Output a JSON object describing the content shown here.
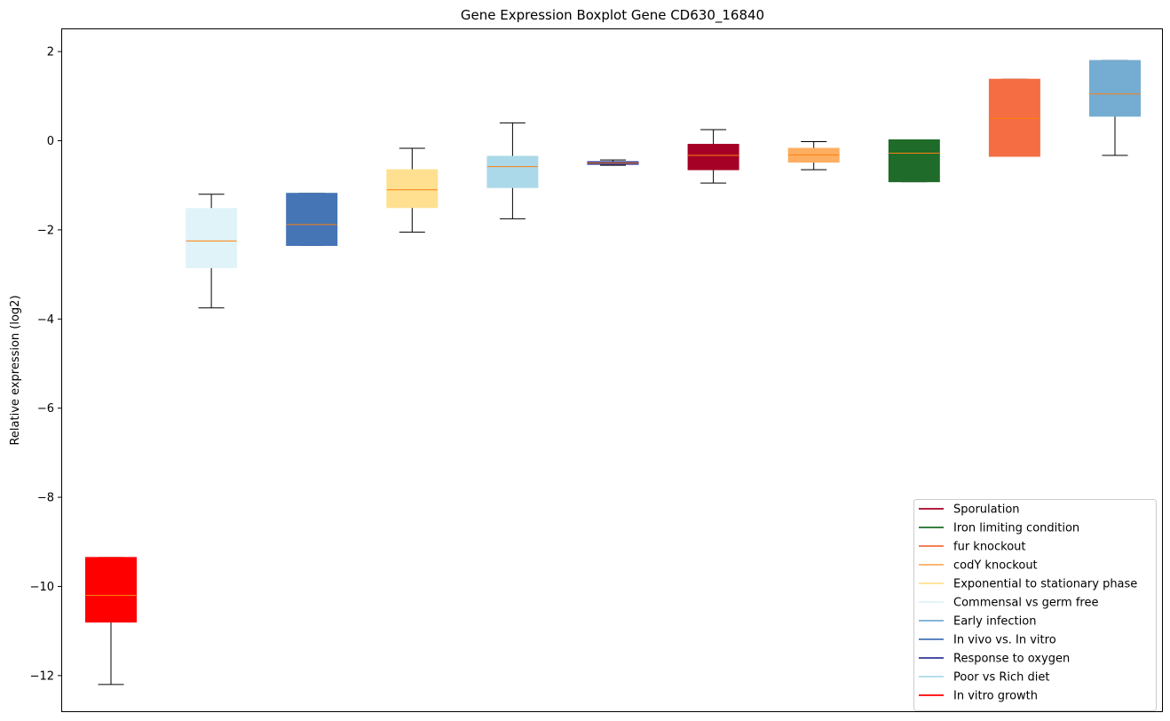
{
  "chart_data": {
    "type": "boxplot",
    "title": "Gene Expression Boxplot Gene CD630_16840",
    "ylabel": "Relative expression (log2)",
    "xlabel": "",
    "ylim": [
      -12.8,
      2.5
    ],
    "yticks": [
      2,
      0,
      -2,
      -4,
      -6,
      -8,
      -10,
      -12
    ],
    "ytick_labels": [
      "2",
      "0",
      "−2",
      "−4",
      "−6",
      "−8",
      "−10",
      "−12"
    ],
    "legend_position": "lower-right",
    "median_color": "#ff7f0e",
    "whisker_color": "#000000",
    "boxes": [
      {
        "name": "In vitro growth",
        "color": "#ff0000",
        "whislo": -12.2,
        "q1": -10.8,
        "med": -10.2,
        "q3": -9.35,
        "whishi": -9.35
      },
      {
        "name": "Commensal vs germ free",
        "color": "#e0f3f8",
        "whislo": -3.75,
        "q1": -2.85,
        "med": -2.25,
        "q3": -1.52,
        "whishi": -1.2
      },
      {
        "name": "In vivo vs. In vitro",
        "color": "#4575b4",
        "whislo": -2.35,
        "q1": -2.35,
        "med": -1.88,
        "q3": -1.18,
        "whishi": -1.18
      },
      {
        "name": "Exponential to stationary phase",
        "color": "#fee090",
        "whislo": -2.05,
        "q1": -1.5,
        "med": -1.1,
        "q3": -0.65,
        "whishi": -0.17
      },
      {
        "name": "Poor vs Rich diet",
        "color": "#abd9e9",
        "whislo": -1.75,
        "q1": -1.05,
        "med": -0.58,
        "q3": -0.35,
        "whishi": 0.4
      },
      {
        "name": "Response to oxygen",
        "color": "#313695",
        "whislo": -0.55,
        "q1": -0.53,
        "med": -0.5,
        "q3": -0.47,
        "whishi": -0.43
      },
      {
        "name": "Sporulation",
        "color": "#a50026",
        "whislo": -0.95,
        "q1": -0.65,
        "med": -0.33,
        "q3": -0.08,
        "whishi": 0.25
      },
      {
        "name": "codY knockout",
        "color": "#fdae61",
        "whislo": -0.65,
        "q1": -0.48,
        "med": -0.32,
        "q3": -0.17,
        "whishi": -0.02
      },
      {
        "name": "Iron limiting condition",
        "color": "#1f6b2a",
        "whislo": -0.92,
        "q1": -0.92,
        "med": -0.28,
        "q3": 0.02,
        "whishi": 0.02
      },
      {
        "name": "fur knockout",
        "color": "#f46d43",
        "whislo": -0.35,
        "q1": -0.35,
        "med": 0.5,
        "q3": 1.38,
        "whishi": 1.38
      },
      {
        "name": "Early infection",
        "color": "#74add1",
        "whislo": -0.33,
        "q1": 0.55,
        "med": 1.05,
        "q3": 1.8,
        "whishi": 1.8
      }
    ],
    "legend": [
      {
        "label": "Sporulation",
        "color": "#a50026"
      },
      {
        "label": "Iron limiting condition",
        "color": "#1f6b2a"
      },
      {
        "label": "fur knockout",
        "color": "#f46d43"
      },
      {
        "label": "codY knockout",
        "color": "#fdae61"
      },
      {
        "label": "Exponential to stationary phase",
        "color": "#fee090"
      },
      {
        "label": "Commensal vs germ free",
        "color": "#e0f3f8"
      },
      {
        "label": "Early infection",
        "color": "#74add1"
      },
      {
        "label": "In vivo vs. In vitro",
        "color": "#4575b4"
      },
      {
        "label": "Response to oxygen",
        "color": "#313695"
      },
      {
        "label": "Poor vs Rich diet",
        "color": "#abd9e9"
      },
      {
        "label": "In vitro growth",
        "color": "#ff0000"
      }
    ]
  }
}
